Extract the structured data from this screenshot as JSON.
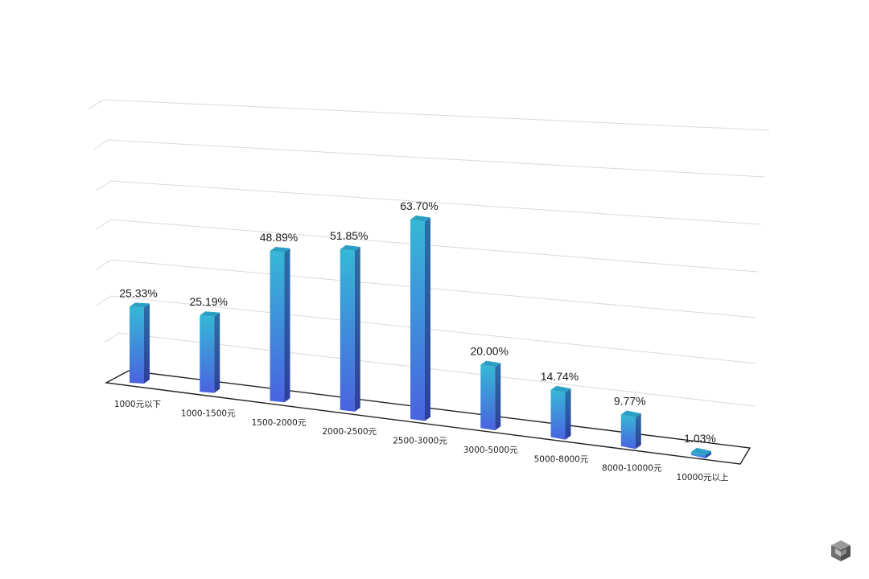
{
  "chart_data": {
    "type": "bar",
    "categories": [
      "1000元以下",
      "1000-1500元",
      "1500-2000元",
      "2000-2500元",
      "2500-3000元",
      "3000-5000元",
      "5000-8000元",
      "8000-10000元",
      "10000元以上"
    ],
    "values": [
      25.33,
      25.19,
      48.89,
      51.85,
      63.7,
      20.0,
      14.74,
      9.77,
      1.03
    ],
    "data_labels": [
      "25.33%",
      "25.19%",
      "48.89%",
      "51.85%",
      "63.70%",
      "20.00%",
      "14.74%",
      "9.77%",
      "1.03%"
    ],
    "title": "",
    "xlabel": "",
    "ylabel": "",
    "ylim": [
      0,
      70
    ],
    "grid": true,
    "style": "3d-perspective",
    "colors": {
      "bar_top": "#35b8d6",
      "bar_bottom": "#4a63e0",
      "bar_side_top": "#2a6fa8",
      "bar_side_bottom": "#2e3f9a",
      "bar_cap": "#2ba0c4",
      "grid": "#d9d9d9",
      "floor_outline": "#222222"
    }
  },
  "watermark": {
    "icon": "cube-logo-icon"
  }
}
